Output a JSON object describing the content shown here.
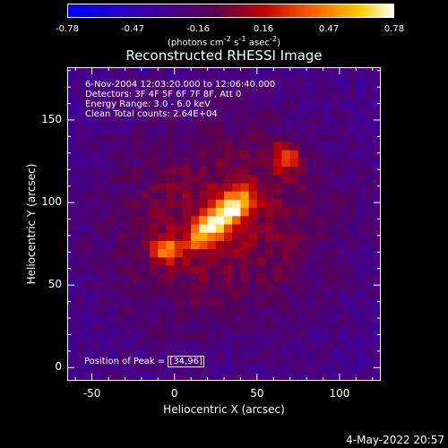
{
  "chart_data": {
    "type": "heatmap",
    "title": "Reconstructed RHESSI Image",
    "xlabel": "Heliocentric X (arcsec)",
    "ylabel": "Heliocentric Y (arcsec)",
    "xlim": [
      -65,
      125
    ],
    "ylim": [
      -8,
      182
    ],
    "xticks": [
      -50,
      0,
      50,
      100
    ],
    "yticks": [
      0,
      50,
      100,
      150
    ],
    "colorbar": {
      "ticks": [
        "-0.78",
        "-0.47",
        "-0.16",
        "0.16",
        "0.47",
        "0.78"
      ],
      "range": [
        -0.78,
        0.78
      ],
      "unit_parts": {
        "pre": "(photons cm",
        "e1": "-2",
        "mid1": " s",
        "e2": "-1",
        "mid2": " asec",
        "e3": "-2",
        "post": ")"
      }
    },
    "annotations": [
      "6-Nov-2004 12:03:20.000 to 12:06:40.000",
      "Detectors: 3F 4F 5F 6F 7F 8F, Att 0",
      "Energy Range: 3.0 - 6.0 keV",
      "Clean     Total counts: 2.64E+04"
    ],
    "peak_label": "Position of Peak = ",
    "peak_value": "[34,96]",
    "sources": [
      {
        "x": 34,
        "y": 96,
        "amp": 0.78,
        "sx": 11,
        "sy": 6,
        "rot": 40
      },
      {
        "x": 18,
        "y": 82,
        "amp": 0.55,
        "sx": 9,
        "sy": 5,
        "rot": 40
      },
      {
        "x": -5,
        "y": 72,
        "amp": 0.55,
        "sx": 6,
        "sy": 5,
        "rot": 0
      },
      {
        "x": 67,
        "y": 127,
        "amp": 0.48,
        "sx": 6,
        "sy": 6,
        "rot": 0
      },
      {
        "x": 28,
        "y": 88,
        "amp": 0.35,
        "sx": 50,
        "sy": 45,
        "rot": 20
      }
    ]
  },
  "timestamp": "4-May-2022 20:57"
}
